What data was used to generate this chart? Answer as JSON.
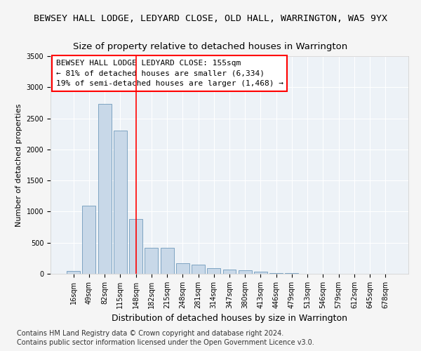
{
  "title": "BEWSEY HALL LODGE, LEDYARD CLOSE, OLD HALL, WARRINGTON, WA5 9YX",
  "subtitle": "Size of property relative to detached houses in Warrington",
  "xlabel": "Distribution of detached houses by size in Warrington",
  "ylabel": "Number of detached properties",
  "bar_color": "#c8d8e8",
  "bar_edge_color": "#5a8ab0",
  "categories": [
    "16sqm",
    "49sqm",
    "82sqm",
    "115sqm",
    "148sqm",
    "182sqm",
    "215sqm",
    "248sqm",
    "281sqm",
    "314sqm",
    "347sqm",
    "380sqm",
    "413sqm",
    "446sqm",
    "479sqm",
    "513sqm",
    "546sqm",
    "579sqm",
    "612sqm",
    "645sqm",
    "678sqm"
  ],
  "values": [
    50,
    1090,
    2730,
    2300,
    880,
    420,
    420,
    170,
    150,
    90,
    65,
    55,
    35,
    15,
    10,
    5,
    4,
    3,
    2,
    1,
    1
  ],
  "ylim": [
    0,
    3500
  ],
  "yticks": [
    0,
    500,
    1000,
    1500,
    2000,
    2500,
    3000,
    3500
  ],
  "redline_x": 4,
  "annotation_box_text": "BEWSEY HALL LODGE LEDYARD CLOSE: 155sqm\n← 81% of detached houses are smaller (6,334)\n19% of semi-detached houses are larger (1,468) →",
  "footer1": "Contains HM Land Registry data © Crown copyright and database right 2024.",
  "footer2": "Contains public sector information licensed under the Open Government Licence v3.0.",
  "bg_color": "#edf2f7",
  "grid_color": "#ffffff",
  "fig_bg": "#f5f5f5",
  "title_fontsize": 9.5,
  "subtitle_fontsize": 9.5,
  "xlabel_fontsize": 9,
  "ylabel_fontsize": 8,
  "tick_fontsize": 7,
  "footer_fontsize": 7,
  "annotation_fontsize": 8
}
